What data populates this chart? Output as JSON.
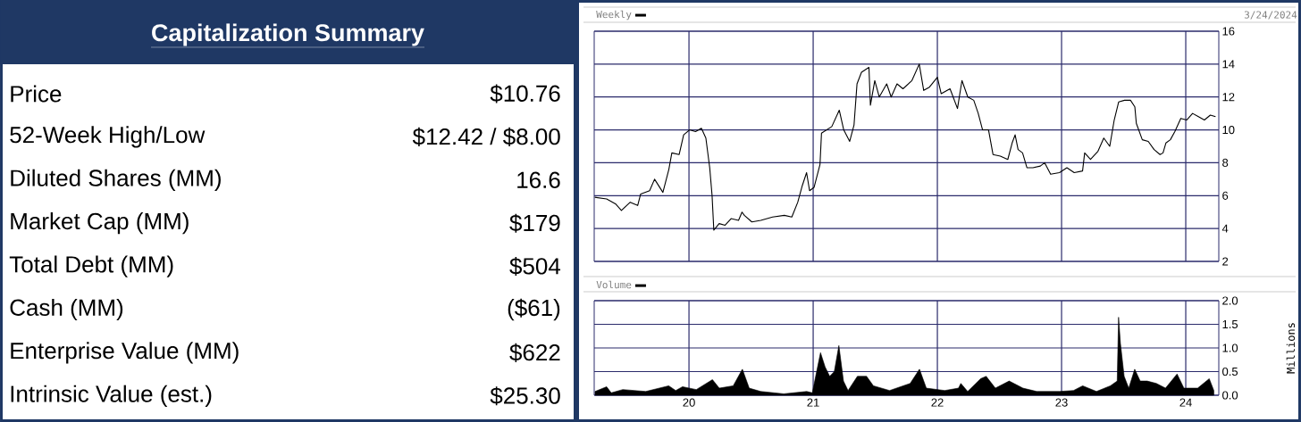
{
  "chart_data": [
    {
      "type": "other",
      "title": "Capitalization Summary",
      "categories": [
        "Price",
        "52-Week High/Low",
        "Diluted Shares (MM)",
        "Market Cap (MM)",
        "Total Debt (MM)",
        "Cash (MM)",
        "Enterprise Value (MM)",
        "Intrinsic Value (est.)"
      ],
      "value_labels": [
        "$10.76",
        "$12.42 / $8.00",
        "16.6",
        "$179",
        "$504",
        "($61)",
        "$622",
        "$25.30"
      ]
    },
    {
      "type": "line",
      "legend": "top left",
      "grid": true,
      "tick_labels": "y",
      "xlim": [
        2019.237,
        2024.266
      ],
      "ylim": [
        2,
        16
      ],
      "yticks": [
        2,
        4,
        6,
        8,
        10,
        12,
        14,
        16
      ],
      "xticks": [
        {
          "value": 2020,
          "label": null
        },
        {
          "value": 2021,
          "label": null
        },
        {
          "value": 2022,
          "label": null
        },
        {
          "value": 2023,
          "label": null
        },
        {
          "value": 2024,
          "label": null
        }
      ],
      "annotations": [
        "3/24/2024"
      ],
      "series": [
        {
          "name": "Weekly",
          "color": "#000000",
          "x": [
            2019.241,
            2019.337,
            2019.408,
            2019.456,
            2019.527,
            2019.587,
            2019.611,
            2019.683,
            2019.723,
            2019.79,
            2019.838,
            2019.862,
            2019.921,
            2019.957,
            2020.005,
            2020.053,
            2020.1,
            2020.136,
            2020.167,
            2020.186,
            2020.2,
            2020.243,
            2020.291,
            2020.339,
            2020.399,
            2020.427,
            2020.446,
            2020.506,
            2020.578,
            2020.673,
            2020.768,
            2020.828,
            2020.876,
            2020.912,
            2020.947,
            2020.971,
            2021.007,
            2021.055,
            2021.067,
            2021.15,
            2021.21,
            2021.246,
            2021.294,
            2021.329,
            2021.353,
            2021.389,
            2021.449,
            2021.461,
            2021.496,
            2021.532,
            2021.592,
            2021.628,
            2021.675,
            2021.723,
            2021.795,
            2021.854,
            2021.89,
            2021.936,
            2022.0,
            2022.031,
            2022.102,
            2022.162,
            2022.198,
            2022.245,
            2022.293,
            2022.329,
            2022.364,
            2022.412,
            2022.448,
            2022.507,
            2022.567,
            2022.602,
            2022.626,
            2022.65,
            2022.686,
            2022.721,
            2022.769,
            2022.829,
            2022.864,
            2022.912,
            2022.983,
            2023.043,
            2023.102,
            2023.169,
            2023.186,
            2023.233,
            2023.293,
            2023.34,
            2023.388,
            2023.424,
            2023.46,
            2023.507,
            2023.555,
            2023.59,
            2023.602,
            2023.65,
            2023.698,
            2023.745,
            2023.793,
            2023.817,
            2023.84,
            2023.876,
            2023.912,
            2023.96,
            2024.007,
            2024.055,
            2024.102,
            2024.15,
            2024.198,
            2024.24
          ],
          "values": [
            5.9,
            5.8,
            5.5,
            5.1,
            5.6,
            5.4,
            6.1,
            6.3,
            7.0,
            6.2,
            7.6,
            8.6,
            8.5,
            9.7,
            10.0,
            9.9,
            10.1,
            9.5,
            7.7,
            6.0,
            3.9,
            4.3,
            4.2,
            4.6,
            4.5,
            5.0,
            4.8,
            4.4,
            4.5,
            4.7,
            4.8,
            4.7,
            5.6,
            6.6,
            7.4,
            6.3,
            6.5,
            7.9,
            9.8,
            10.2,
            11.2,
            10.0,
            9.3,
            10.3,
            12.8,
            13.5,
            13.8,
            11.5,
            13.0,
            12.0,
            12.8,
            12.0,
            12.8,
            12.5,
            13.0,
            14.0,
            12.4,
            12.6,
            13.2,
            12.2,
            12.5,
            11.3,
            13.0,
            12.0,
            11.8,
            11.0,
            10.0,
            10.0,
            8.5,
            8.4,
            8.2,
            9.2,
            9.7,
            8.8,
            8.6,
            7.7,
            7.7,
            7.8,
            8.0,
            7.3,
            7.4,
            7.7,
            7.4,
            7.5,
            8.6,
            8.2,
            8.7,
            9.5,
            9.0,
            10.6,
            11.7,
            11.8,
            11.8,
            11.4,
            10.4,
            9.4,
            9.3,
            8.8,
            8.5,
            8.6,
            9.2,
            9.4,
            9.9,
            10.7,
            10.6,
            11.0,
            10.8,
            10.6,
            10.9,
            10.8
          ]
        }
      ]
    },
    {
      "type": "area",
      "legend": "top left",
      "grid": true,
      "ylabel": "Millions",
      "xlim": [
        2019.237,
        2024.266
      ],
      "ylim": [
        0,
        2
      ],
      "yticks": [
        {
          "value": 0,
          "label": "0.0"
        },
        {
          "value": 0.5,
          "label": "0.5"
        },
        {
          "value": 1,
          "label": "1.0"
        },
        {
          "value": 1.5,
          "label": "1.5"
        },
        {
          "value": 2,
          "label": "2.0"
        }
      ],
      "xticks": [
        {
          "value": 2020,
          "label": "20"
        },
        {
          "value": 2021,
          "label": "21"
        },
        {
          "value": 2022,
          "label": "22"
        },
        {
          "value": 2023,
          "label": "23"
        },
        {
          "value": 2024,
          "label": "24"
        }
      ],
      "series": [
        {
          "name": "Volume",
          "color": "#000000",
          "x": [
            2019.244,
            2019.337,
            2019.374,
            2019.467,
            2019.652,
            2019.837,
            2019.893,
            2019.948,
            2020.059,
            2020.189,
            2020.244,
            2020.356,
            2020.43,
            2020.485,
            2020.578,
            2020.763,
            2020.948,
            2020.993,
            2021.059,
            2021.096,
            2021.133,
            2021.17,
            2021.207,
            2021.244,
            2021.281,
            2021.356,
            2021.43,
            2021.485,
            2021.615,
            2021.781,
            2021.856,
            2021.911,
            2022.059,
            2022.17,
            2022.189,
            2022.244,
            2022.348,
            2022.393,
            2022.467,
            2022.578,
            2022.689,
            2022.8,
            2022.985,
            2023.096,
            2023.17,
            2023.281,
            2023.393,
            2023.448,
            2023.459,
            2023.474,
            2023.504,
            2023.541,
            2023.589,
            2023.633,
            2023.689,
            2023.763,
            2023.837,
            2023.93,
            2023.985,
            2024.096,
            2024.189,
            2024.226
          ],
          "values": [
            0.08,
            0.18,
            0.05,
            0.12,
            0.08,
            0.2,
            0.1,
            0.18,
            0.12,
            0.33,
            0.15,
            0.2,
            0.55,
            0.15,
            0.08,
            0.03,
            0.08,
            0.05,
            0.9,
            0.6,
            0.4,
            0.5,
            1.05,
            0.3,
            0.1,
            0.4,
            0.4,
            0.2,
            0.1,
            0.25,
            0.55,
            0.15,
            0.1,
            0.15,
            0.25,
            0.08,
            0.35,
            0.4,
            0.15,
            0.3,
            0.15,
            0.08,
            0.08,
            0.1,
            0.2,
            0.08,
            0.2,
            0.3,
            1.65,
            1.1,
            0.4,
            0.15,
            0.55,
            0.3,
            0.3,
            0.25,
            0.15,
            0.45,
            0.15,
            0.15,
            0.35,
            0.1
          ]
        }
      ]
    }
  ]
}
